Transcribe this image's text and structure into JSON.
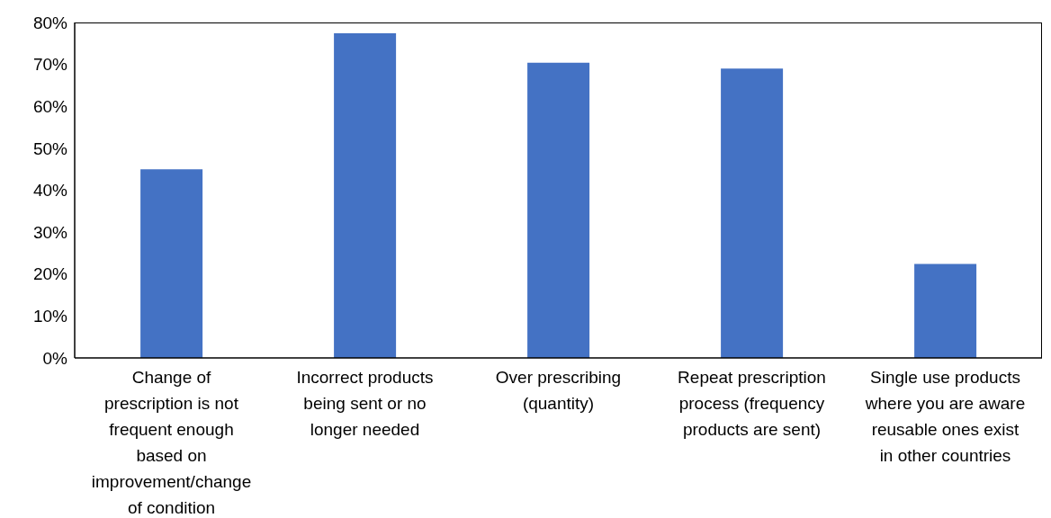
{
  "chart_data": {
    "type": "bar",
    "categories": [
      "Change of prescription is not frequent enough based on improvement/change of condition",
      "Incorrect products being sent or no longer needed",
      "Over prescribing (quantity)",
      "Repeat prescription process (frequency products are sent)",
      "Single use products where you are aware reusable ones exist in other countries"
    ],
    "values": [
      45,
      77.4,
      70.4,
      69,
      22.4
    ],
    "color": "#4472c4",
    "ylim": [
      0,
      80
    ],
    "yticks": [
      {
        "value": 0,
        "label": "0%"
      },
      {
        "value": 10,
        "label": "10%"
      },
      {
        "value": 20,
        "label": "20%"
      },
      {
        "value": 30,
        "label": "30%"
      },
      {
        "value": 40,
        "label": "40%"
      },
      {
        "value": 50,
        "label": "50%"
      },
      {
        "value": 60,
        "label": "60%"
      },
      {
        "value": 70,
        "label": "70%"
      },
      {
        "value": 80,
        "label": "80%"
      }
    ],
    "grid": false
  }
}
